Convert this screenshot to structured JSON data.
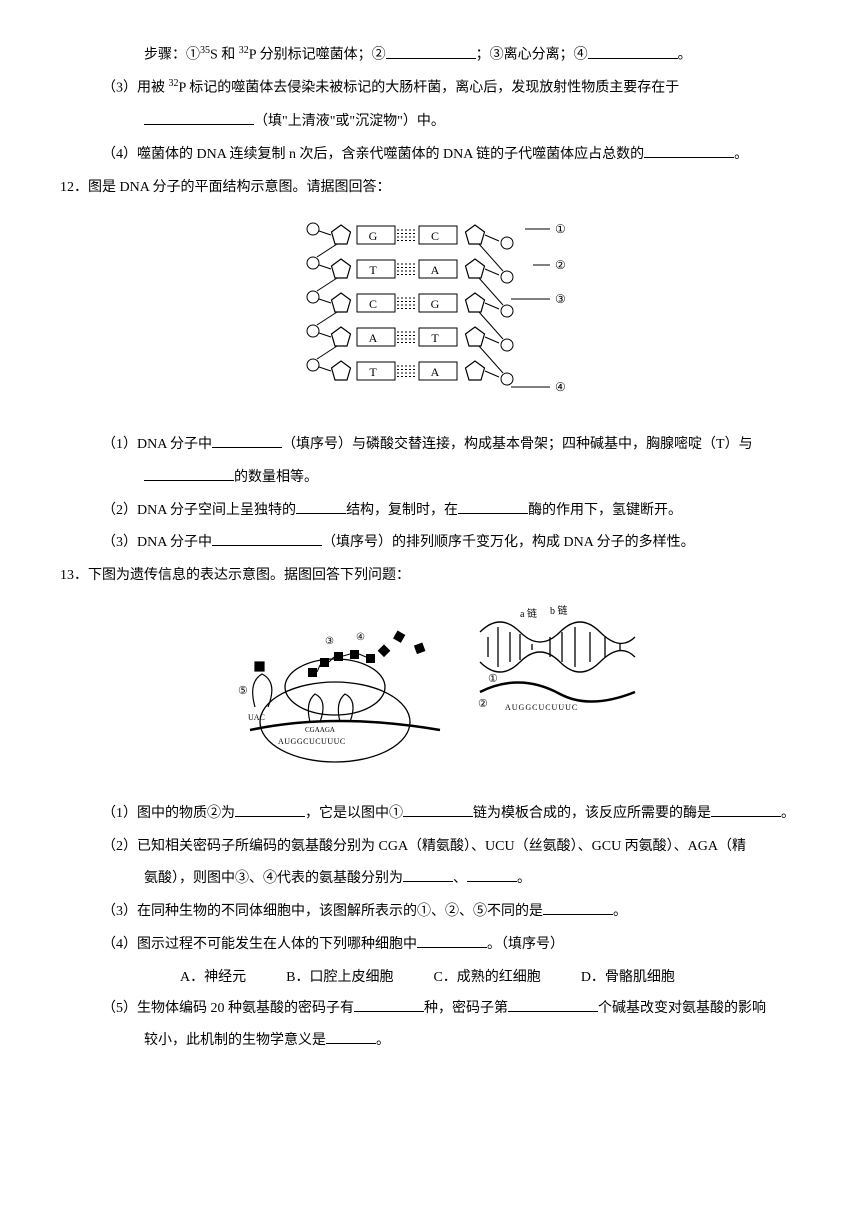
{
  "q11": {
    "step_line_prefix": "步骤：①",
    "s_label": "35",
    "s_elem": "S 和 ",
    "p_label": "32",
    "p_elem": "P 分别标记噬菌体；②",
    "step3": "；③离心分离；④",
    "period": "。",
    "p3_a": "（3）用被 ",
    "p3_b": "P 标记的噬菌体去侵染未被标记的大肠杆菌，离心后，发现放射性物质主要存在于",
    "p3_c": "（填\"上清液\"或\"沉淀物\"）中。",
    "p4": "（4）噬菌体的 DNA 连续复制 n 次后，含亲代噬菌体的 DNA 链的子代噬菌体应占总数的"
  },
  "q12": {
    "num": "12．",
    "stem": "图是 DNA 分子的平面结构示意图。请据图回答：",
    "dna": {
      "pairs": [
        [
          "G",
          "C"
        ],
        [
          "T",
          "A"
        ],
        [
          "C",
          "G"
        ],
        [
          "A",
          "T"
        ],
        [
          "T",
          "A"
        ]
      ],
      "labels": [
        "①",
        "②",
        "③",
        "④"
      ],
      "box_stroke": "#000000",
      "pentagon_stroke": "#000000"
    },
    "p1_a": "（1）DNA 分子中",
    "p1_b": "（填序号）与磷酸交替连接，构成基本骨架；四种碱基中，胸腺嘧啶（T）与",
    "p1_c": "的数量相等。",
    "p2_a": "（2）DNA 分子空间上呈独特的",
    "p2_b": "结构，复制时，在",
    "p2_c": "酶的作用下，氢键断开。",
    "p3_a": "（3）DNA 分子中",
    "p3_b": "（填序号）的排列顺序千变万化，构成 DNA 分子的多样性。"
  },
  "q13": {
    "num": "13．",
    "stem": "下图为遗传信息的表达示意图。据图回答下列问题：",
    "fig": {
      "label_a": "a 链",
      "label_b": "b 链",
      "circled1": "①",
      "circled2": "②",
      "circled3": "③",
      "circled4": "④",
      "circled5": "⑤",
      "anticodon": "UAC",
      "mrna_seq_left": "CGAAGA",
      "mrna_under": "AUGGCUCUUUC",
      "mrna_right": "AUGGCUCUUUC"
    },
    "p1_a": "（1）图中的物质②为",
    "p1_b": "，它是以图中①",
    "p1_c": "链为模板合成的，该反应所需要的酶是",
    "p2_a": "（2）已知相关密码子所编码的氨基酸分别为 CGA（精氨酸）、UCU（丝氨酸）、GCU 丙氨酸）、AGA（精",
    "p2_b": "氨酸），则图中③、④代表的氨基酸分别为",
    "p2_c": "、",
    "p2_d": "。",
    "p3_a": "（3）在同种生物的不同体细胞中，该图解所表示的①、②、⑤不同的是",
    "p3_b": "。",
    "p4_a": "（4）图示过程不可能发生在人体的下列哪种细胞中",
    "p4_b": "。（填序号）",
    "opts": {
      "A": "A．神经元",
      "B": "B．口腔上皮细胞",
      "C": "C．成熟的红细胞",
      "D": "D．骨骼肌细胞"
    },
    "p5_a": "（5）生物体编码 20 种氨基酸的密码子有",
    "p5_b": "种，密码子第",
    "p5_c": "个碱基改变对氨基酸的影响",
    "p5_d": "较小，此机制的生物学意义是",
    "p5_e": "。"
  }
}
